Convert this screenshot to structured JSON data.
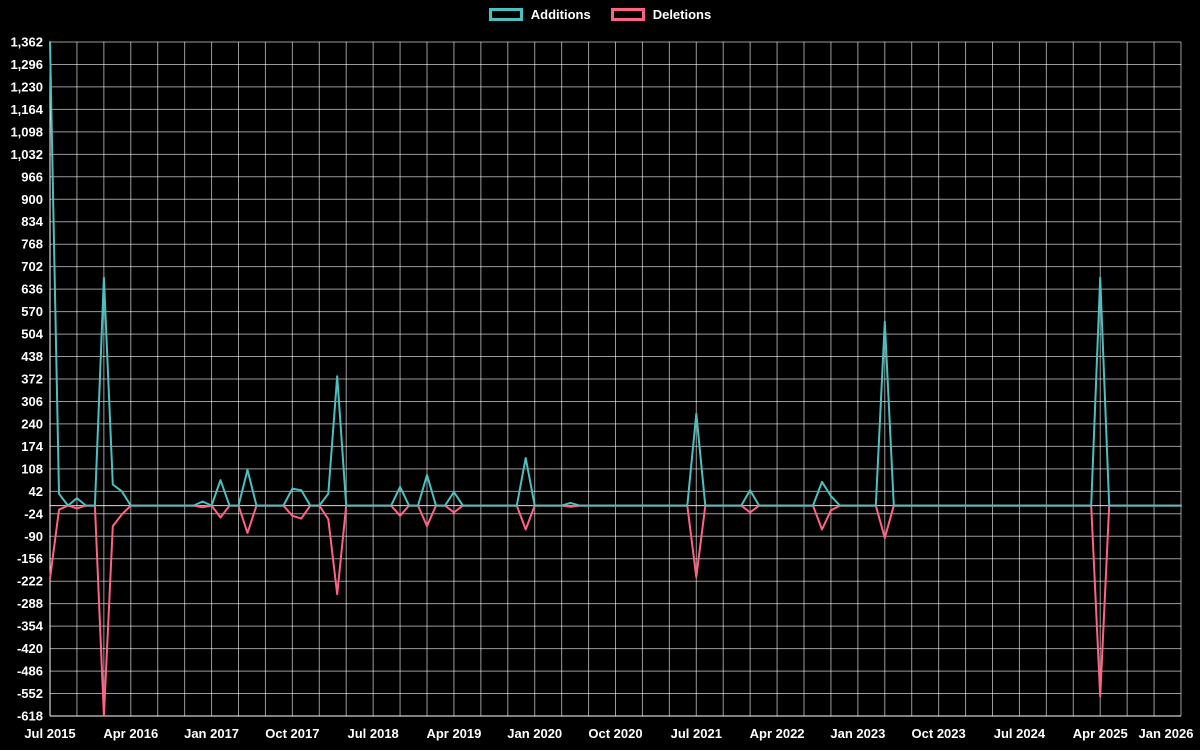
{
  "chart_data": {
    "type": "line",
    "title": "",
    "legend": [
      "Additions",
      "Deletions"
    ],
    "legend_position": "top-center",
    "grid": true,
    "background": "#000000",
    "colors": {
      "Additions": "#4bc0c0",
      "Deletions": "#ff6384",
      "grid": "rgba(255,255,255,0.6)",
      "axis": "#ffffff",
      "text": "#ffffff"
    },
    "x_range": [
      "2015-07",
      "2026-01"
    ],
    "x_tick_labels": [
      "Jul 2015",
      "Apr 2016",
      "Jan 2017",
      "Oct 2017",
      "Jul 2018",
      "Apr 2019",
      "Jan 2020",
      "Oct 2020",
      "Jul 2021",
      "Apr 2022",
      "Jan 2023",
      "Oct 2023",
      "Jul 2024",
      "Apr 2025",
      "Jan 2026"
    ],
    "x_label_step_months": 9,
    "x_grid_step_months": 3,
    "y_min": -618,
    "y_max": 1362,
    "y_step": 66,
    "y_tick_labels": [
      "1,362",
      "1,296",
      "1,230",
      "1,164",
      "1,098",
      "1,032",
      "966",
      "900",
      "834",
      "768",
      "702",
      "636",
      "570",
      "504",
      "438",
      "372",
      "306",
      "240",
      "174",
      "108",
      "42",
      "-24",
      "-90",
      "-156",
      "-222",
      "-288",
      "-354",
      "-420",
      "-486",
      "-552",
      "-618"
    ],
    "series": [
      {
        "name": "Additions",
        "baseline": 0,
        "spikes": {
          "2015-07": 1362,
          "2015-08": 35,
          "2015-10": 22,
          "2016-01": 670,
          "2016-02": 62,
          "2016-03": 42,
          "2016-12": 12,
          "2017-02": 75,
          "2017-05": 105,
          "2017-10": 50,
          "2017-11": 45,
          "2018-02": 35,
          "2018-03": 380,
          "2018-10": 55,
          "2019-01": 90,
          "2019-04": 40,
          "2019-12": 140,
          "2020-05": 8,
          "2021-07": 270,
          "2022-01": 45,
          "2022-09": 70,
          "2022-10": 28,
          "2023-04": 540,
          "2025-04": 670
        }
      },
      {
        "name": "Deletions",
        "baseline": 0,
        "spikes": {
          "2015-07": -215,
          "2015-08": -12,
          "2015-10": -8,
          "2016-01": -618,
          "2016-02": -60,
          "2016-03": -26,
          "2016-12": -5,
          "2017-02": -35,
          "2017-05": -80,
          "2017-10": -30,
          "2017-11": -38,
          "2018-02": -40,
          "2018-03": -260,
          "2018-10": -30,
          "2019-01": -60,
          "2019-04": -20,
          "2019-12": -70,
          "2020-05": -3,
          "2021-07": -210,
          "2022-01": -20,
          "2022-09": -70,
          "2022-10": -14,
          "2023-04": -95,
          "2025-04": -560
        }
      }
    ]
  }
}
